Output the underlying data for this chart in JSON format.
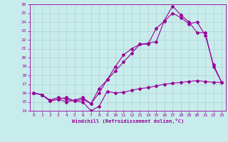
{
  "xlabel": "Windchill (Refroidissement éolien,°C)",
  "bg_color": "#c8ecec",
  "line_color": "#990099",
  "grid_color": "#b0d0d0",
  "xlim": [
    -0.5,
    23.5
  ],
  "ylim": [
    14,
    26
  ],
  "xticks": [
    0,
    1,
    2,
    3,
    4,
    5,
    6,
    7,
    8,
    9,
    10,
    11,
    12,
    13,
    14,
    15,
    16,
    17,
    18,
    19,
    20,
    21,
    22,
    23
  ],
  "yticks": [
    14,
    15,
    16,
    17,
    18,
    19,
    20,
    21,
    22,
    23,
    24,
    25,
    26
  ],
  "series1_x": [
    0,
    1,
    2,
    3,
    4,
    5,
    6,
    7,
    8,
    9,
    10,
    11,
    12,
    13,
    14,
    15,
    16,
    17,
    18,
    19,
    20,
    21,
    22,
    23
  ],
  "series1_y": [
    16.0,
    15.8,
    15.1,
    15.3,
    15.5,
    15.1,
    15.0,
    14.0,
    14.5,
    16.2,
    16.0,
    16.1,
    16.3,
    16.5,
    16.6,
    16.8,
    17.0,
    17.1,
    17.2,
    17.3,
    17.4,
    17.3,
    17.2,
    17.2
  ],
  "series2_x": [
    0,
    1,
    2,
    3,
    4,
    5,
    6,
    7,
    8,
    9,
    10,
    11,
    12,
    13,
    14,
    15,
    16,
    17,
    18,
    19,
    20,
    21,
    22,
    23
  ],
  "series2_y": [
    16.0,
    15.8,
    15.1,
    15.3,
    15.0,
    15.2,
    15.5,
    14.8,
    16.0,
    17.5,
    18.5,
    19.5,
    20.5,
    21.5,
    21.6,
    21.8,
    24.2,
    25.8,
    24.8,
    24.0,
    22.8,
    22.8,
    19.0,
    17.2
  ],
  "series3_x": [
    0,
    1,
    2,
    3,
    4,
    5,
    6,
    7,
    8,
    9,
    10,
    11,
    12,
    13,
    14,
    15,
    16,
    17,
    18,
    19,
    20,
    21,
    22,
    23
  ],
  "series3_y": [
    16.0,
    15.8,
    15.2,
    15.5,
    15.3,
    15.1,
    15.3,
    14.8,
    16.5,
    17.5,
    19.0,
    20.3,
    21.0,
    21.5,
    21.5,
    23.3,
    24.1,
    25.0,
    24.5,
    23.8,
    24.0,
    22.5,
    19.2,
    17.2
  ]
}
